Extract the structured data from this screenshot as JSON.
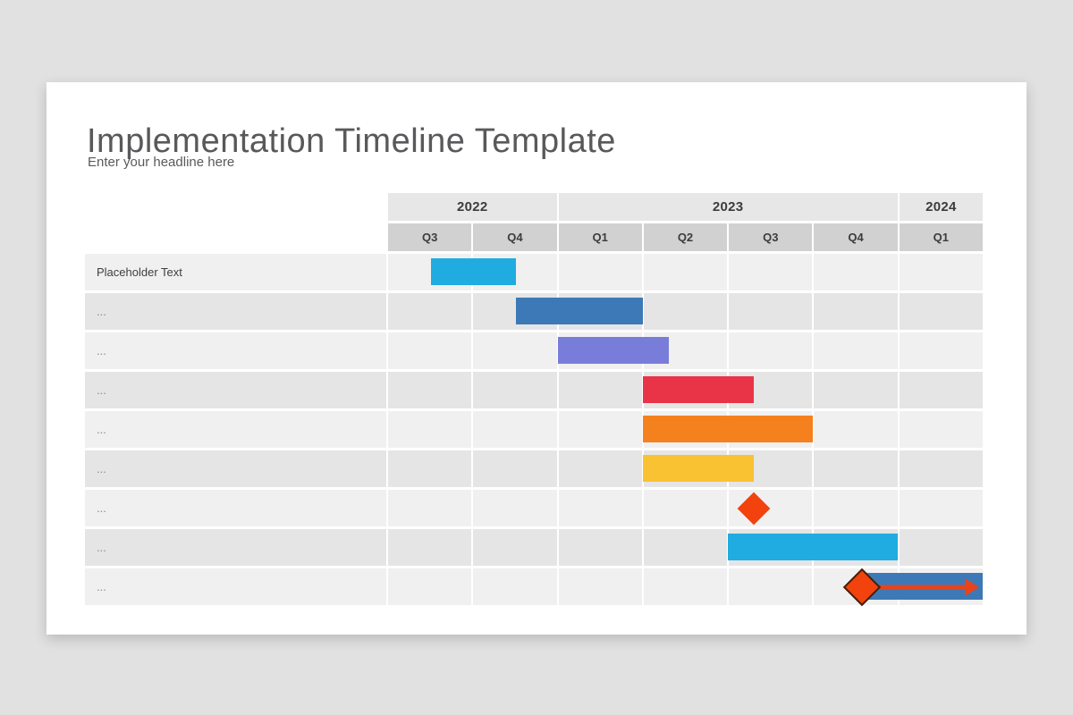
{
  "slide": {
    "title": "Implementation Timeline Template",
    "subtitle": "Enter your headline here"
  },
  "colors": {
    "page_background": "#e2e1e1",
    "slide_background": "#ffffff",
    "year_header_bg": "#e8e7e7",
    "quarter_header_bg": "#d2d1d1",
    "row_light_bg": "#f1f0f0",
    "row_dark_bg": "#e6e5e5",
    "header_text": "#3c3c3c",
    "title_text": "#58595b"
  },
  "chart_data": {
    "type": "gantt",
    "title": "Implementation Timeline Template",
    "subtitle": "Enter your headline here",
    "time_axis_unit": "quarter",
    "axis_range": [
      "2022 Q3",
      "2024 Q1"
    ],
    "grid": true,
    "years": [
      {
        "label": "2022",
        "colspan": 2
      },
      {
        "label": "2023",
        "colspan": 4
      },
      {
        "label": "2024",
        "colspan": 1
      }
    ],
    "quarters": [
      "Q3",
      "Q4",
      "Q1",
      "Q2",
      "Q3",
      "Q4",
      "Q1"
    ],
    "rows": [
      {
        "label": "Placeholder Text",
        "bars": [
          {
            "start": 0.5,
            "end": 1.5,
            "color": "#20ace0"
          }
        ]
      },
      {
        "label": "...",
        "bars": [
          {
            "start": 1.5,
            "end": 3.0,
            "color": "#3c79b6"
          }
        ]
      },
      {
        "label": "...",
        "bars": [
          {
            "start": 2.0,
            "end": 3.3,
            "color": "#787dda"
          }
        ]
      },
      {
        "label": "...",
        "bars": [
          {
            "start": 3.0,
            "end": 4.3,
            "color": "#e93448"
          }
        ]
      },
      {
        "label": "...",
        "bars": [
          {
            "start": 3.0,
            "end": 5.0,
            "color": "#f5811e"
          }
        ]
      },
      {
        "label": "...",
        "bars": [
          {
            "start": 3.0,
            "end": 4.3,
            "color": "#f9c233"
          }
        ]
      },
      {
        "label": "...",
        "milestones": [
          {
            "at": 4.3,
            "color": "#f2420e"
          }
        ]
      },
      {
        "label": "...",
        "bars": [
          {
            "start": 4.0,
            "end": 6.0,
            "color": "#20ace0"
          }
        ]
      },
      {
        "label": "...",
        "bars": [
          {
            "start": 5.57,
            "end": 7.0,
            "color": "#3c79b6"
          }
        ],
        "milestones": [
          {
            "at": 5.58,
            "color": "#f2420e",
            "outline": "#42210b"
          }
        ],
        "arrows": [
          {
            "from": 5.7,
            "to": 6.96,
            "color": "#e9431c"
          }
        ]
      }
    ]
  }
}
